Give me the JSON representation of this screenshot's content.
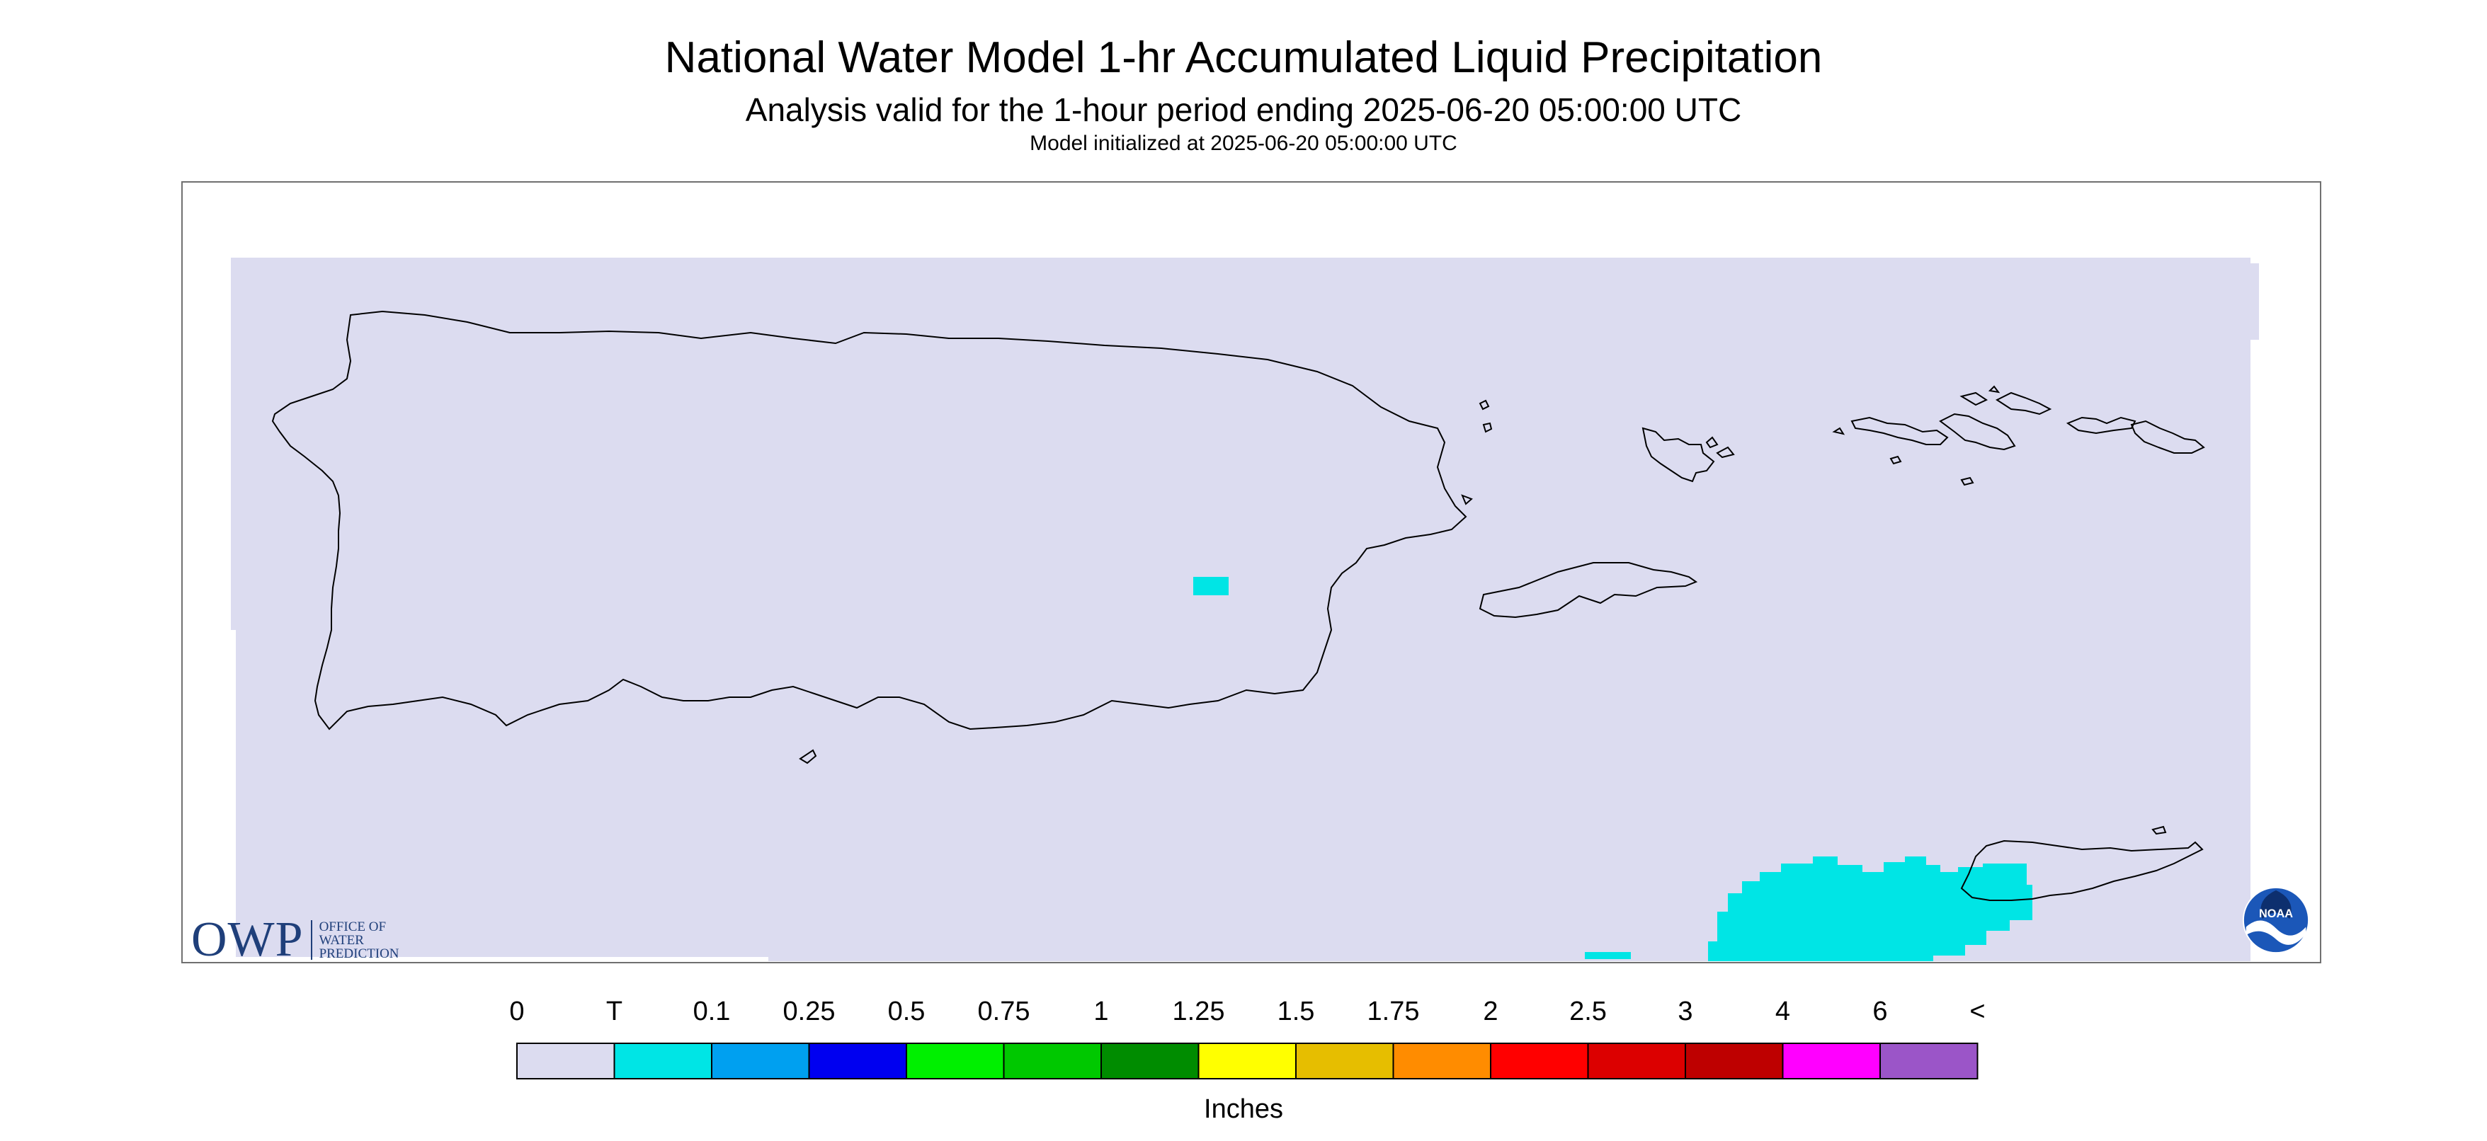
{
  "header": {
    "title": "National Water Model 1-hr Accumulated Liquid Precipitation",
    "subtitle": "Analysis valid for the 1-hour period ending 2025-06-20 05:00:00 UTC",
    "init_line": "Model initialized at 2025-06-20 05:00:00 UTC"
  },
  "map": {
    "background_color": "#dcdcf0",
    "coast_color": "#000000",
    "precip_color": "#00e5e5"
  },
  "legend": {
    "unit_label": "Inches",
    "labels": [
      "0",
      "T",
      "0.1",
      "0.25",
      "0.5",
      "0.75",
      "1",
      "1.25",
      "1.5",
      "1.75",
      "2",
      "2.5",
      "3",
      "4",
      "6",
      "<"
    ],
    "colors": [
      "#dcdcf0",
      "#00e5e5",
      "#00a0f0",
      "#0000f0",
      "#00f000",
      "#00c800",
      "#008c00",
      "#ffff00",
      "#e6be00",
      "#ff8c00",
      "#ff0000",
      "#dc0000",
      "#be0000",
      "#ff00ff",
      "#9b55c8"
    ]
  },
  "logos": {
    "owp_mark": "OWP",
    "owp_text": [
      "OFFICE OF",
      "WATER",
      "PREDICTION"
    ],
    "noaa_text": "NOAA"
  }
}
